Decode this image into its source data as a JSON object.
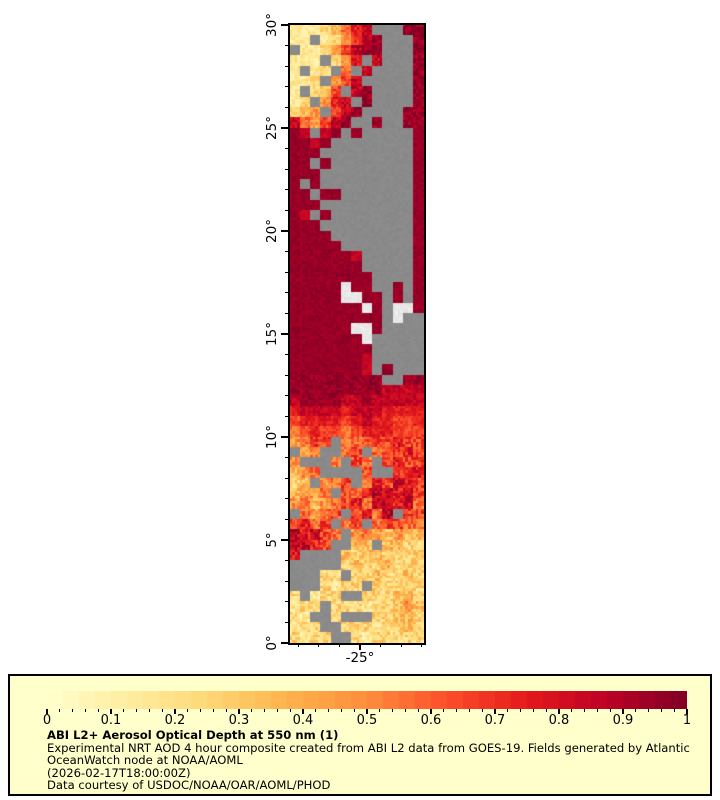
{
  "page": {
    "background": "#ffffff"
  },
  "chart_data": {
    "type": "heatmap",
    "title": "ABI L2+ Aerosol Optical Depth at 550 nm (1)",
    "variable": "Aerosol Optical Depth at 550 nm",
    "map": {
      "lat_range": [
        0,
        30
      ],
      "lon_range": [
        -28.4,
        -21.9
      ],
      "yaxis_ticks": [
        {
          "lat": 0,
          "label": "0°"
        },
        {
          "lat": 5,
          "label": "5°"
        },
        {
          "lat": 10,
          "label": "10°"
        },
        {
          "lat": 15,
          "label": "15°"
        },
        {
          "lat": 20,
          "label": "20°"
        },
        {
          "lat": 25,
          "label": "25°"
        },
        {
          "lat": 30,
          "label": "30°"
        }
      ],
      "xaxis_ticks": [
        {
          "lon": -25,
          "label": "-25°"
        }
      ],
      "minor_tick_interval_deg": 1,
      "missing_color": "#8a8a8a",
      "bright_cloud_color": "#e8e8e8",
      "grid_encoding": "rows listed north(30N) to south(0); 13 cells per row west to east; digit d = AOD approx 0.05+0.1*d; '.' = missing/cloud-masked (gray); 'W' = bright cloud/island (near white)",
      "grid_cols": 13,
      "grid_rows": [
        "11123578...99",
        "11.124689...9",
        ".11246899...9",
        "111.247.8...9",
        "1.12.5.8....9",
        "112.468.....9",
        "1.236.89....9",
        "12.478.9....9",
        "234.689....99",
        "854689..9..99",
        "98.89.9.....9",
        "9989........9",
        "999.........9",
        "99.9........9",
        "999.........9",
        "9.9.........9",
        "99.99.......9",
        "999.........9",
        "98.9........9",
        "999.........9",
        "9999........9",
        "99999.......9",
        "9999998.....9",
        "9999999.....9",
        "99999999....9",
        "99999W99..9.9",
        "99999WW99.9.9",
        "9999999W9.WW9",
        "999999999.W..",
        "999999WW9....",
        "9999999W.....",
        "99999999.....",
        "99999998.....",
        "99999998.9...",
        "999999999..99",
        "9999999998888",
        "8999988988888",
        "7888878887777",
        "6777767877667",
        "5676656777666",
        "4566.55666766",
        ".45..56.56676",
        "4...5.65.6766",
        "345....6..677",
        "23.456.576876",
        "3445.65788786",
        "4534567588785",
        ".5456.6758.66",
        "6756.56.56655",
        "87865.4543433",
        "8876..33.3322",
        "7....32332223",
        ".....23223222",
        "...22.2232232",
        "...2122.22222",
        "2.122..222332",
        "122.222122343",
        "21..2...22332",
        "122..22212232",
        "2122..2122222"
      ]
    },
    "colorbar": {
      "min": 0,
      "max": 1,
      "major_ticks": [
        {
          "v": 0.0,
          "label": "0"
        },
        {
          "v": 0.1,
          "label": "0.1"
        },
        {
          "v": 0.2,
          "label": "0.2"
        },
        {
          "v": 0.3,
          "label": "0.3"
        },
        {
          "v": 0.4,
          "label": "0.4"
        },
        {
          "v": 0.5,
          "label": "0.5"
        },
        {
          "v": 0.6,
          "label": "0.6"
        },
        {
          "v": 0.7,
          "label": "0.7"
        },
        {
          "v": 0.8,
          "label": "0.8"
        },
        {
          "v": 0.9,
          "label": "0.9"
        },
        {
          "v": 1.0,
          "label": "1"
        }
      ],
      "minor_tick_step": 0.02,
      "steps": 40,
      "colormap": "YlOrRd",
      "stops": [
        [
          0.0,
          "#ffffcc"
        ],
        [
          0.125,
          "#ffeda0"
        ],
        [
          0.25,
          "#fed976"
        ],
        [
          0.375,
          "#feb24c"
        ],
        [
          0.5,
          "#fd8d3c"
        ],
        [
          0.625,
          "#fc4e2a"
        ],
        [
          0.75,
          "#e31a1c"
        ],
        [
          0.875,
          "#bd0026"
        ],
        [
          1.0,
          "#800026"
        ]
      ]
    }
  },
  "legend": {
    "background": "#ffffcc",
    "caption": {
      "title": "ABI L2+ Aerosol Optical Depth at 550 nm (1)",
      "line1": "Experimental NRT AOD 4 hour composite created from ABI L2 data from GOES-19. Fields generated by Atlantic",
      "line2": "OceanWatch node at NOAA/AOML",
      "line3": "(2026-02-17T18:00:00Z)",
      "line4": "Data courtesy of USDOC/NOAA/OAR/AOML/PHOD"
    }
  }
}
